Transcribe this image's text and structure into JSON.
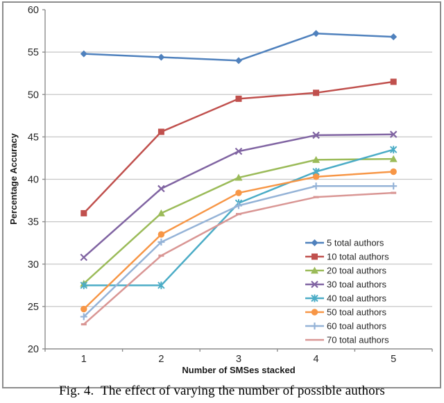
{
  "figure": {
    "caption": "Fig. 4.  The effect of varying the number of possible authors"
  },
  "chart_data": {
    "type": "line",
    "title": "",
    "xlabel": "Number of SMSes stacked",
    "ylabel": "Percentage Accuracy",
    "x": [
      1,
      2,
      3,
      4,
      5
    ],
    "x_tick_labels": [
      "1",
      "2",
      "3",
      "4",
      "5"
    ],
    "y_ticks": [
      20,
      25,
      30,
      35,
      40,
      45,
      50,
      55,
      60
    ],
    "ylim": [
      20,
      60
    ],
    "grid": "horizontal-major",
    "legend_position": "inside-right",
    "colors": {
      "axis_line": "#8c8c8c",
      "gridline": "#c6c6c6",
      "tick_text": "#262626",
      "axis_title_text": "#1a1a1a",
      "legend_text": "#262626",
      "frame_border": "#8c8c8c"
    },
    "series": [
      {
        "name": "5 total authors",
        "color": "#4F81BD",
        "marker": "diamond",
        "values": [
          54.8,
          54.4,
          54.0,
          57.2,
          56.8
        ]
      },
      {
        "name": "10 total authors",
        "color": "#C0504D",
        "marker": "square",
        "values": [
          36.0,
          45.6,
          49.5,
          50.2,
          51.5
        ]
      },
      {
        "name": "20 toal authors",
        "color": "#9BBB59",
        "marker": "triangle",
        "values": [
          27.7,
          36.0,
          40.2,
          42.3,
          42.4
        ]
      },
      {
        "name": "30 toal authors",
        "color": "#8064A2",
        "marker": "x",
        "values": [
          30.8,
          38.9,
          43.3,
          45.2,
          45.3
        ]
      },
      {
        "name": "40 toal authors",
        "color": "#4BACC6",
        "marker": "star",
        "values": [
          27.5,
          27.5,
          37.2,
          40.9,
          43.5
        ]
      },
      {
        "name": "50 toal authors",
        "color": "#F79646",
        "marker": "circle",
        "values": [
          24.7,
          33.5,
          38.4,
          40.3,
          40.9
        ]
      },
      {
        "name": "60 toal authors",
        "color": "#95B3D7",
        "marker": "plus",
        "values": [
          23.8,
          32.6,
          36.9,
          39.2,
          39.2
        ]
      },
      {
        "name": "70 total authors",
        "color": "#D99694",
        "marker": "dash",
        "values": [
          22.9,
          31.0,
          35.9,
          37.9,
          38.4
        ]
      }
    ]
  }
}
